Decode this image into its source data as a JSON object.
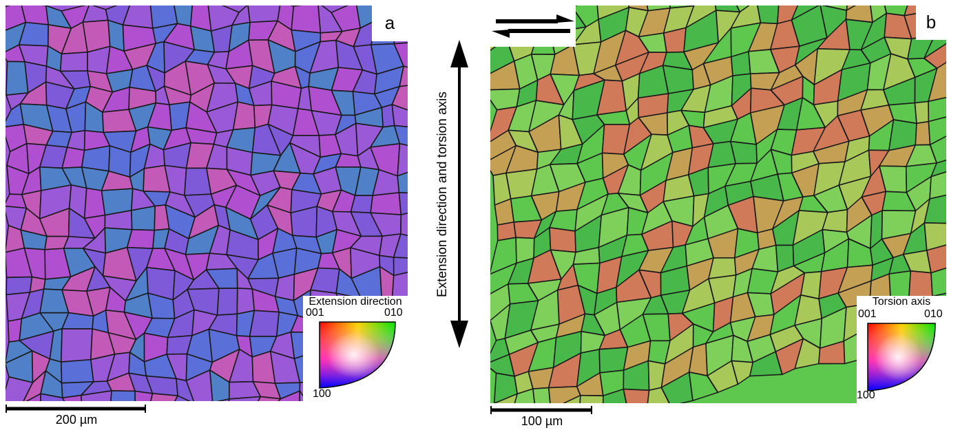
{
  "panel_a": {
    "label": "a",
    "key_title": "Extension direction",
    "key_labels": {
      "top_left": "001",
      "top_right": "010",
      "bottom": "100"
    },
    "scale_bar": "200 µm",
    "dominant_colors": [
      "#9a59d6",
      "#b04fd0",
      "#7e5ad8",
      "#5a6fd8",
      "#c45ab8",
      "#4f80c8"
    ]
  },
  "panel_b": {
    "label": "b",
    "key_title": "Torsion axis",
    "key_labels": {
      "top_left": "001",
      "top_right": "010",
      "bottom": "100"
    },
    "scale_bar": "100 µm",
    "dominant_colors": [
      "#5ec84e",
      "#7ed05a",
      "#a8c85a",
      "#c4a055",
      "#48b84a",
      "#d07a5a"
    ]
  },
  "center": {
    "axis_label": "Extension direction and torsion axis",
    "arrow": "double-headed-vertical-arrow",
    "shear_symbol": "shear-sense-arrows"
  }
}
